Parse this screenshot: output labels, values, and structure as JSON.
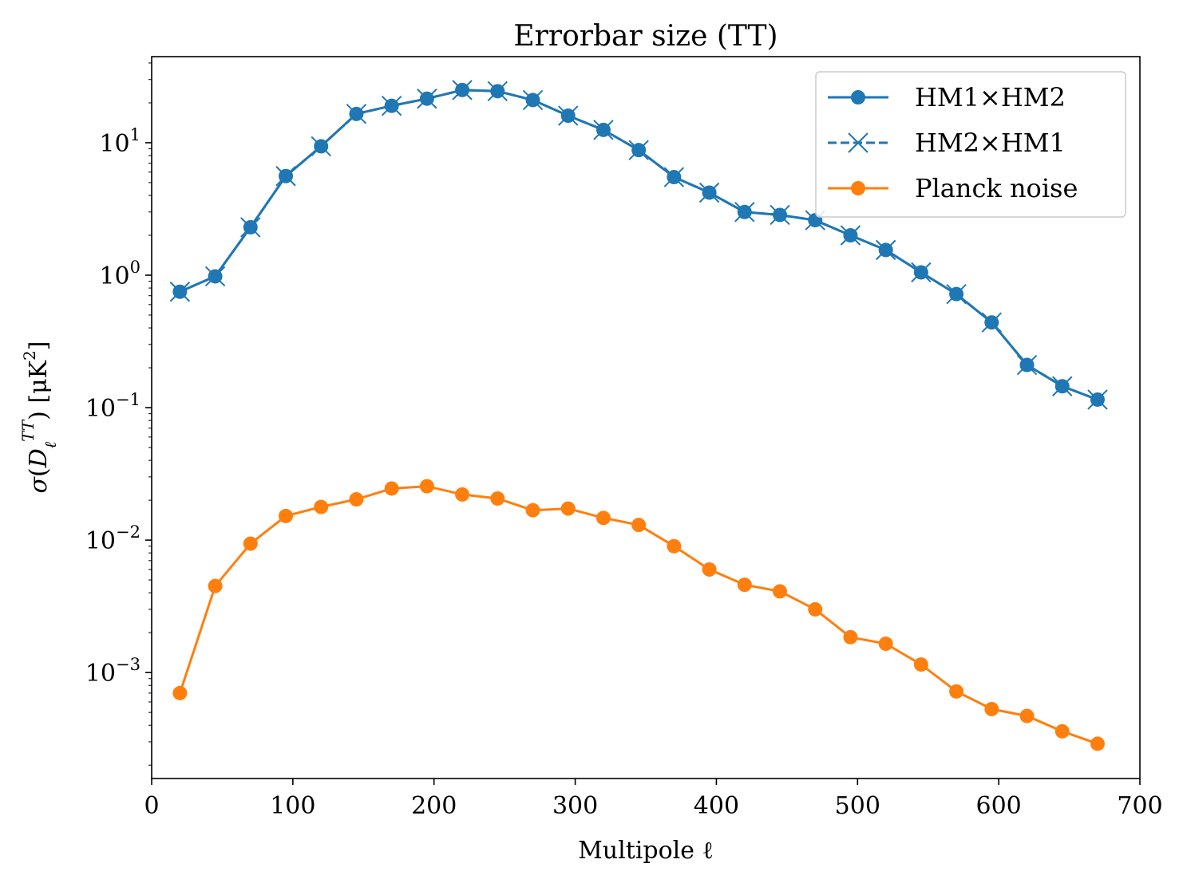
{
  "chart_data": {
    "type": "line",
    "title": "Errorbar size (TT)",
    "xlabel": "Multipole ℓ",
    "ylabel": "σ(D_ℓ^{TT}) [μK²]",
    "xlim": [
      0,
      700
    ],
    "ylim_log10": [
      -3.8,
      1.65
    ],
    "yscale": "log",
    "grid": false,
    "legend_position": "top-right",
    "x_ticks": [
      0,
      100,
      200,
      300,
      400,
      500,
      600,
      700
    ],
    "y_ticks": [
      {
        "exp": "1",
        "label_base": "10",
        "label_exp": "1"
      },
      {
        "exp": "0",
        "label_base": "10",
        "label_exp": "0"
      },
      {
        "exp": "-1",
        "label_base": "10",
        "label_exp": "−1"
      },
      {
        "exp": "-2",
        "label_base": "10",
        "label_exp": "−2"
      },
      {
        "exp": "-3",
        "label_base": "10",
        "label_exp": "−3"
      }
    ],
    "x": [
      20,
      45,
      70,
      95,
      120,
      145,
      170,
      195,
      220,
      245,
      270,
      295,
      320,
      345,
      370,
      395,
      420,
      445,
      470,
      495,
      520,
      545,
      570,
      595,
      620,
      645,
      670
    ],
    "series": [
      {
        "name": "HM1×HM2",
        "color": "#1f77b4",
        "linestyle": "solid",
        "marker": "circle",
        "values": [
          0.75,
          0.98,
          2.3,
          5.6,
          9.4,
          16.5,
          19.0,
          21.5,
          25.0,
          24.5,
          21.0,
          16.0,
          12.5,
          8.8,
          5.5,
          4.2,
          3.0,
          2.85,
          2.6,
          2.0,
          1.55,
          1.05,
          0.72,
          0.44,
          0.21,
          0.145,
          0.115
        ]
      },
      {
        "name": "HM2×HM1",
        "color": "#1f77b4",
        "linestyle": "dashed",
        "marker": "x",
        "values": [
          0.75,
          0.98,
          2.3,
          5.6,
          9.4,
          16.5,
          19.0,
          21.5,
          25.0,
          24.5,
          21.0,
          16.0,
          12.5,
          8.8,
          5.5,
          4.2,
          3.0,
          2.85,
          2.6,
          2.0,
          1.55,
          1.05,
          0.72,
          0.44,
          0.21,
          0.145,
          0.115
        ]
      },
      {
        "name": "Planck noise",
        "color": "#ff7f0e",
        "linestyle": "solid",
        "marker": "circle",
        "values": [
          0.0007,
          0.0045,
          0.0094,
          0.0152,
          0.0178,
          0.0203,
          0.0245,
          0.0255,
          0.0221,
          0.0206,
          0.0168,
          0.0173,
          0.0147,
          0.013,
          0.009,
          0.006,
          0.0046,
          0.0041,
          0.003,
          0.00185,
          0.00165,
          0.00115,
          0.00072,
          0.00053,
          0.00047,
          0.00036,
          0.00029
        ]
      }
    ]
  }
}
